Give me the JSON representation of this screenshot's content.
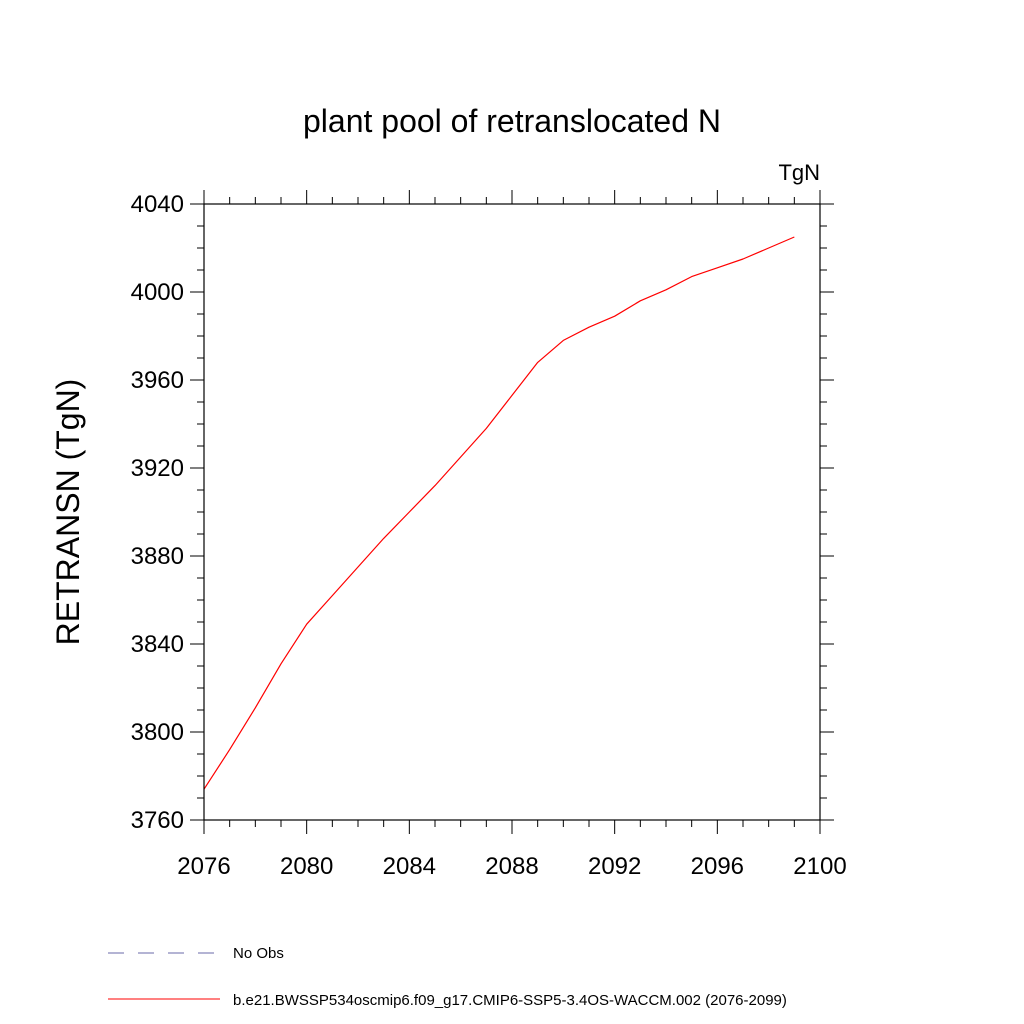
{
  "chart_data": {
    "type": "line",
    "title": "plant pool of retranslocated N",
    "units": "TgN",
    "xlabel": "",
    "ylabel": "RETRANSN  (TgN)",
    "xlim": [
      2076,
      2100
    ],
    "ylim": [
      3760,
      4040
    ],
    "x_ticks": [
      2076,
      2080,
      2084,
      2088,
      2092,
      2096,
      2100
    ],
    "y_ticks": [
      3760,
      3800,
      3840,
      3880,
      3920,
      3960,
      4000,
      4040
    ],
    "x_minor_step": 1,
    "y_minor_step": 10,
    "series": [
      {
        "name": "b.e21.BWSSP534oscmip6.f09_g17.CMIP6-SSP5-3.4OS-WACCM.002 (2076-2099)",
        "color": "#ff0000",
        "style": "solid",
        "x": [
          2076,
          2077,
          2078,
          2079,
          2080,
          2081,
          2082,
          2083,
          2084,
          2085,
          2086,
          2087,
          2088,
          2089,
          2090,
          2091,
          2092,
          2093,
          2094,
          2095,
          2096,
          2097,
          2098,
          2099
        ],
        "y": [
          3774,
          3792,
          3811,
          3831,
          3849,
          3862,
          3875,
          3888,
          3900,
          3912,
          3925,
          3938,
          3953,
          3968,
          3978,
          3984,
          3989,
          3996,
          4001,
          4007,
          4011,
          4015,
          4020,
          4025
        ]
      }
    ],
    "legend": [
      {
        "label": "No Obs",
        "color": "#6a6aa8",
        "style": "dashed"
      },
      {
        "label": "b.e21.BWSSP534oscmip6.f09_g17.CMIP6-SSP5-3.4OS-WACCM.002 (2076-2099)",
        "color": "#ff0000",
        "style": "solid"
      }
    ]
  }
}
